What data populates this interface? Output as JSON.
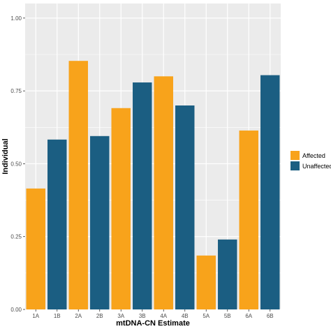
{
  "chart_data": {
    "type": "bar",
    "xlabel": "mtDNA-CN Estimate",
    "ylabel": "Individual",
    "ylim": [
      0,
      1.05
    ],
    "yticks": [
      "0.00",
      "0.25",
      "0.50",
      "0.75",
      "1.00"
    ],
    "ytick_values": [
      0,
      0.25,
      0.5,
      0.75,
      1.0
    ],
    "grid": true,
    "legend_position": "right",
    "categories": [
      "1A",
      "1B",
      "2A",
      "2B",
      "3A",
      "3B",
      "4A",
      "4B",
      "5A",
      "5B",
      "6A",
      "6B"
    ],
    "values": [
      0.415,
      0.583,
      0.853,
      0.595,
      0.691,
      0.779,
      0.8,
      0.7,
      0.185,
      0.24,
      0.614,
      0.804
    ],
    "groups": [
      "Affected",
      "Unaffected",
      "Affected",
      "Unaffected",
      "Affected",
      "Unaffected",
      "Affected",
      "Unaffected",
      "Affected",
      "Unaffected",
      "Affected",
      "Unaffected"
    ],
    "series": [
      {
        "name": "Affected",
        "color": "#F8A31B"
      },
      {
        "name": "Unaffected",
        "color": "#1B5E82"
      }
    ]
  },
  "colors": {
    "panel_background": "#EBEBEB",
    "grid": "#FFFFFF"
  }
}
